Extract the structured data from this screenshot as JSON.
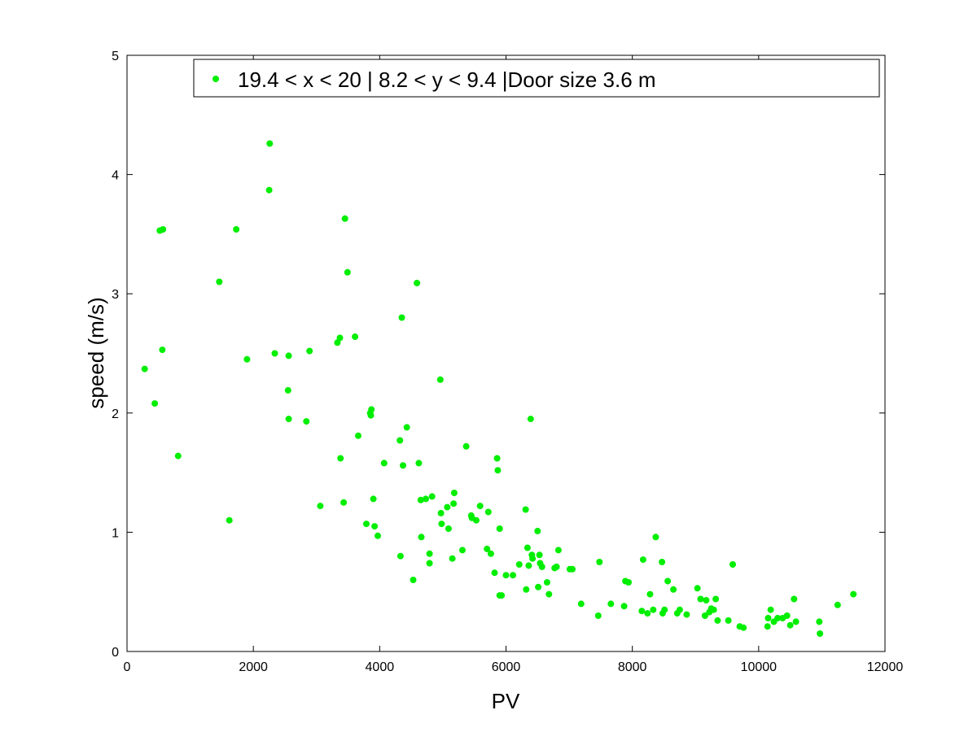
{
  "chart_data": {
    "type": "scatter",
    "xlabel": "PV",
    "ylabel": "speed (m/s)",
    "xlim": [
      0,
      12000
    ],
    "ylim": [
      0,
      5
    ],
    "xticks": [
      0,
      2000,
      4000,
      6000,
      8000,
      10000,
      12000
    ],
    "yticks": [
      0,
      1,
      2,
      3,
      4,
      5
    ],
    "grid": false,
    "legend_position": "top",
    "series": [
      {
        "name": "19.4 < x < 20 | 8.2 < y < 9.4 |Door size 3.6 m",
        "color": "#00ee00",
        "points": [
          [
            280,
            2.37
          ],
          [
            440,
            2.08
          ],
          [
            520,
            3.53
          ],
          [
            560,
            2.53
          ],
          [
            570,
            3.54
          ],
          [
            810,
            1.64
          ],
          [
            1460,
            3.1
          ],
          [
            1620,
            1.1
          ],
          [
            1730,
            3.54
          ],
          [
            1900,
            2.45
          ],
          [
            2250,
            3.87
          ],
          [
            2260,
            4.26
          ],
          [
            2340,
            2.5
          ],
          [
            2550,
            2.19
          ],
          [
            2560,
            2.48
          ],
          [
            2560,
            1.95
          ],
          [
            2840,
            1.93
          ],
          [
            2890,
            2.52
          ],
          [
            3060,
            1.22
          ],
          [
            3330,
            2.59
          ],
          [
            3370,
            2.63
          ],
          [
            3380,
            1.62
          ],
          [
            3430,
            1.25
          ],
          [
            3450,
            3.63
          ],
          [
            3490,
            3.18
          ],
          [
            3610,
            2.64
          ],
          [
            3660,
            1.81
          ],
          [
            3790,
            1.07
          ],
          [
            3850,
            2.0
          ],
          [
            3860,
            1.98
          ],
          [
            3870,
            2.03
          ],
          [
            3900,
            1.28
          ],
          [
            3920,
            1.05
          ],
          [
            3970,
            0.97
          ],
          [
            4070,
            1.58
          ],
          [
            4320,
            1.77
          ],
          [
            4330,
            0.8
          ],
          [
            4350,
            2.8
          ],
          [
            4370,
            1.56
          ],
          [
            4430,
            1.88
          ],
          [
            4530,
            0.6
          ],
          [
            4590,
            3.09
          ],
          [
            4620,
            1.58
          ],
          [
            4650,
            1.27
          ],
          [
            4660,
            0.96
          ],
          [
            4730,
            1.28
          ],
          [
            4790,
            0.82
          ],
          [
            4790,
            0.74
          ],
          [
            4830,
            1.3
          ],
          [
            4960,
            2.28
          ],
          [
            4970,
            1.16
          ],
          [
            4980,
            1.07
          ],
          [
            5070,
            1.21
          ],
          [
            5090,
            1.03
          ],
          [
            5150,
            0.78
          ],
          [
            5170,
            1.24
          ],
          [
            5180,
            1.33
          ],
          [
            5310,
            0.85
          ],
          [
            5370,
            1.72
          ],
          [
            5450,
            1.14
          ],
          [
            5460,
            1.12
          ],
          [
            5530,
            1.1
          ],
          [
            5590,
            1.22
          ],
          [
            5700,
            0.86
          ],
          [
            5720,
            1.17
          ],
          [
            5760,
            0.82
          ],
          [
            5820,
            0.66
          ],
          [
            5860,
            1.62
          ],
          [
            5870,
            1.52
          ],
          [
            5900,
            1.03
          ],
          [
            5900,
            0.47
          ],
          [
            5930,
            0.47
          ],
          [
            6000,
            0.64
          ],
          [
            6110,
            0.64
          ],
          [
            6210,
            0.73
          ],
          [
            6310,
            1.19
          ],
          [
            6320,
            0.52
          ],
          [
            6340,
            0.87
          ],
          [
            6360,
            0.72
          ],
          [
            6390,
            1.95
          ],
          [
            6410,
            0.81
          ],
          [
            6420,
            0.78
          ],
          [
            6500,
            1.01
          ],
          [
            6510,
            0.54
          ],
          [
            6530,
            0.81
          ],
          [
            6540,
            0.74
          ],
          [
            6570,
            0.71
          ],
          [
            6650,
            0.58
          ],
          [
            6680,
            0.48
          ],
          [
            6770,
            0.7
          ],
          [
            6800,
            0.71
          ],
          [
            6830,
            0.85
          ],
          [
            7010,
            0.69
          ],
          [
            7050,
            0.69
          ],
          [
            7190,
            0.4
          ],
          [
            7460,
            0.3
          ],
          [
            7480,
            0.75
          ],
          [
            7660,
            0.4
          ],
          [
            7870,
            0.38
          ],
          [
            7890,
            0.59
          ],
          [
            7940,
            0.58
          ],
          [
            8150,
            0.34
          ],
          [
            8170,
            0.77
          ],
          [
            8240,
            0.32
          ],
          [
            8280,
            0.48
          ],
          [
            8330,
            0.35
          ],
          [
            8370,
            0.96
          ],
          [
            8470,
            0.75
          ],
          [
            8480,
            0.32
          ],
          [
            8510,
            0.35
          ],
          [
            8560,
            0.59
          ],
          [
            8650,
            0.52
          ],
          [
            8710,
            0.32
          ],
          [
            8750,
            0.35
          ],
          [
            8860,
            0.31
          ],
          [
            9030,
            0.53
          ],
          [
            9080,
            0.44
          ],
          [
            9150,
            0.3
          ],
          [
            9170,
            0.43
          ],
          [
            9220,
            0.33
          ],
          [
            9250,
            0.36
          ],
          [
            9290,
            0.35
          ],
          [
            9320,
            0.44
          ],
          [
            9350,
            0.26
          ],
          [
            9520,
            0.26
          ],
          [
            9590,
            0.73
          ],
          [
            9700,
            0.21
          ],
          [
            9760,
            0.2
          ],
          [
            10140,
            0.21
          ],
          [
            10150,
            0.28
          ],
          [
            10190,
            0.35
          ],
          [
            10240,
            0.25
          ],
          [
            10300,
            0.28
          ],
          [
            10380,
            0.28
          ],
          [
            10450,
            0.3
          ],
          [
            10500,
            0.22
          ],
          [
            10560,
            0.44
          ],
          [
            10590,
            0.25
          ],
          [
            10960,
            0.25
          ],
          [
            10970,
            0.15
          ],
          [
            11250,
            0.39
          ],
          [
            11500,
            0.48
          ]
        ]
      }
    ]
  }
}
